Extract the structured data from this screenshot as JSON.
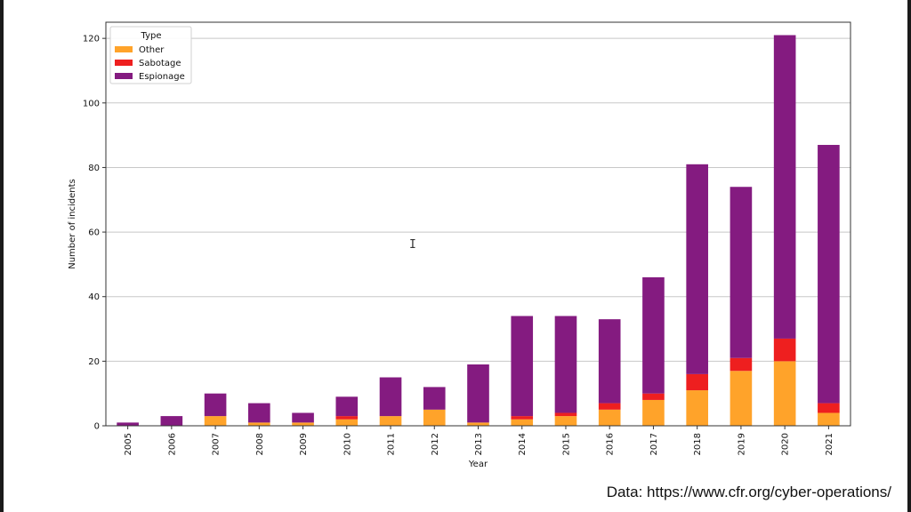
{
  "chart_data": {
    "type": "bar",
    "stacked": true,
    "categories": [
      "2005",
      "2006",
      "2007",
      "2008",
      "2009",
      "2010",
      "2011",
      "2012",
      "2013",
      "2014",
      "2015",
      "2016",
      "2017",
      "2018",
      "2019",
      "2020",
      "2021"
    ],
    "series": [
      {
        "name": "Other",
        "color": "#ffa32a",
        "values": [
          0,
          0,
          3,
          1,
          1,
          2,
          3,
          5,
          1,
          2,
          3,
          5,
          8,
          11,
          17,
          20,
          4
        ]
      },
      {
        "name": "Sabotage",
        "color": "#ee1f1f",
        "values": [
          0,
          0,
          0,
          0,
          0,
          1,
          0,
          0,
          0,
          1,
          1,
          2,
          2,
          5,
          4,
          7,
          3
        ]
      },
      {
        "name": "Espionage",
        "color": "#841b80",
        "values": [
          1,
          3,
          7,
          6,
          3,
          6,
          12,
          7,
          18,
          31,
          30,
          26,
          36,
          65,
          53,
          94,
          80
        ]
      }
    ],
    "xlabel": "Year",
    "ylabel": "Number of incidents",
    "ylim": [
      0,
      125
    ],
    "yticks": [
      0,
      20,
      40,
      60,
      80,
      100,
      120
    ],
    "grid": "y",
    "legend": {
      "title": "Type",
      "placement": "top-left"
    }
  },
  "caption": "Data: https://www.cfr.org/cyber-operations/",
  "cursor_glyph": "I"
}
